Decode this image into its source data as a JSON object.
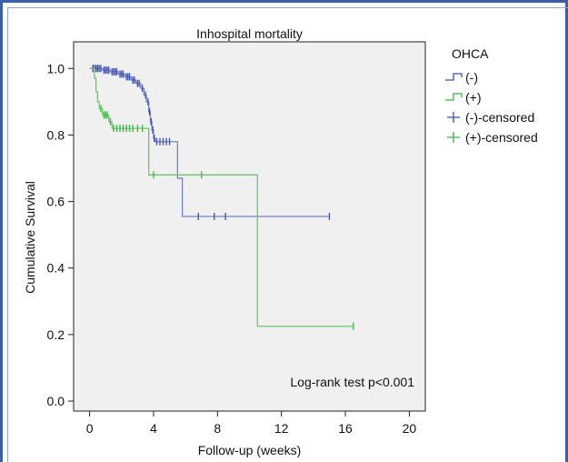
{
  "chart_data": {
    "type": "line",
    "subtype": "kaplan-meier step",
    "title": "Inhospital mortality",
    "xlabel": "Follow-up (weeks)",
    "ylabel": "Cumulative Survival",
    "xlim": [
      -1,
      21
    ],
    "ylim": [
      -0.03,
      1.08
    ],
    "xticks": [
      "0",
      "4",
      "8",
      "12",
      "16",
      "20"
    ],
    "yticks": [
      "0.0",
      "0.2",
      "0.4",
      "0.6",
      "0.8",
      "1.0"
    ],
    "xtick_values": [
      0,
      4,
      8,
      12,
      16,
      20
    ],
    "ytick_values": [
      0.0,
      0.2,
      0.4,
      0.6,
      0.8,
      1.0
    ],
    "annotation": "Log-rank test p<0.001",
    "legend": {
      "title": "OHCA",
      "placement": "outside-right",
      "entries": [
        {
          "label": "(-)",
          "kind": "line",
          "color": "#3b4fb0"
        },
        {
          "label": "(+)",
          "kind": "line",
          "color": "#3ab53a"
        },
        {
          "label": "(-)-censored",
          "kind": "censor",
          "color": "#3b4fb0"
        },
        {
          "label": "(+)-censored",
          "kind": "censor",
          "color": "#3ab53a"
        }
      ]
    },
    "series": [
      {
        "color": "#7483c8",
        "censor_color": "#3b4fb0",
        "steps": [
          [
            0,
            1.0
          ],
          [
            0.8,
            0.995
          ],
          [
            1.3,
            0.99
          ],
          [
            1.8,
            0.983
          ],
          [
            2.2,
            0.975
          ],
          [
            2.6,
            0.965
          ],
          [
            2.9,
            0.955
          ],
          [
            3.2,
            0.94
          ],
          [
            3.4,
            0.92
          ],
          [
            3.55,
            0.9
          ],
          [
            3.7,
            0.87
          ],
          [
            3.8,
            0.84
          ],
          [
            3.9,
            0.815
          ],
          [
            4.0,
            0.79
          ],
          [
            4.1,
            0.78
          ],
          [
            5.5,
            0.67
          ],
          [
            5.8,
            0.555
          ],
          [
            15.0,
            0.555
          ]
        ],
        "censored": [
          [
            0.2,
            1.0
          ],
          [
            0.3,
            1.0
          ],
          [
            0.4,
            1.0
          ],
          [
            0.5,
            1.0
          ],
          [
            0.6,
            1.0
          ],
          [
            0.7,
            1.0
          ],
          [
            0.9,
            0.995
          ],
          [
            1.0,
            0.995
          ],
          [
            1.1,
            0.995
          ],
          [
            1.2,
            0.995
          ],
          [
            1.4,
            0.99
          ],
          [
            1.5,
            0.99
          ],
          [
            1.6,
            0.99
          ],
          [
            1.7,
            0.99
          ],
          [
            1.9,
            0.983
          ],
          [
            2.0,
            0.983
          ],
          [
            2.1,
            0.983
          ],
          [
            2.3,
            0.975
          ],
          [
            2.4,
            0.975
          ],
          [
            2.5,
            0.975
          ],
          [
            2.7,
            0.965
          ],
          [
            2.8,
            0.965
          ],
          [
            3.0,
            0.955
          ],
          [
            3.1,
            0.955
          ],
          [
            3.3,
            0.94
          ],
          [
            3.5,
            0.92
          ],
          [
            3.65,
            0.9
          ],
          [
            3.75,
            0.87
          ],
          [
            3.85,
            0.84
          ],
          [
            3.95,
            0.815
          ],
          [
            4.05,
            0.79
          ],
          [
            4.2,
            0.78
          ],
          [
            4.4,
            0.78
          ],
          [
            4.6,
            0.78
          ],
          [
            4.8,
            0.78
          ],
          [
            5.0,
            0.78
          ],
          [
            6.8,
            0.555
          ],
          [
            7.8,
            0.555
          ],
          [
            8.5,
            0.555
          ],
          [
            15.0,
            0.555
          ]
        ]
      },
      {
        "color": "#6dc66d",
        "censor_color": "#3ab53a",
        "steps": [
          [
            0,
            1.0
          ],
          [
            0.3,
            0.97
          ],
          [
            0.4,
            0.93
          ],
          [
            0.5,
            0.9
          ],
          [
            0.6,
            0.88
          ],
          [
            0.8,
            0.86
          ],
          [
            1.2,
            0.84
          ],
          [
            1.4,
            0.82
          ],
          [
            3.6,
            0.82
          ],
          [
            3.7,
            0.68
          ],
          [
            10.5,
            0.68
          ],
          [
            10.5,
            0.225
          ],
          [
            16.5,
            0.225
          ]
        ],
        "censored": [
          [
            0.7,
            0.88
          ],
          [
            0.9,
            0.86
          ],
          [
            1.0,
            0.86
          ],
          [
            1.1,
            0.86
          ],
          [
            1.3,
            0.84
          ],
          [
            1.5,
            0.82
          ],
          [
            1.7,
            0.82
          ],
          [
            1.9,
            0.82
          ],
          [
            2.1,
            0.82
          ],
          [
            2.3,
            0.82
          ],
          [
            2.5,
            0.82
          ],
          [
            2.7,
            0.82
          ],
          [
            3.0,
            0.82
          ],
          [
            3.3,
            0.82
          ],
          [
            4.0,
            0.68
          ],
          [
            7.0,
            0.68
          ],
          [
            16.5,
            0.225
          ]
        ]
      }
    ]
  }
}
